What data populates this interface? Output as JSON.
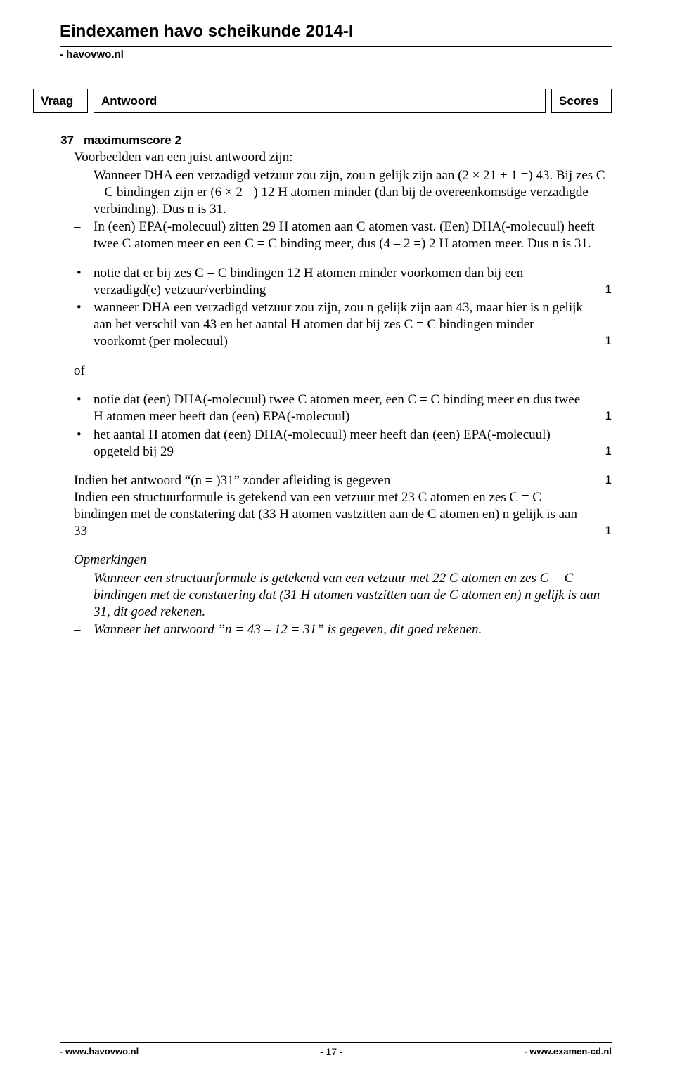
{
  "header": {
    "title": "Eindexamen havo scheikunde  2014-I",
    "subtitle": "- havovwo.nl",
    "col_vraag": "Vraag",
    "col_antwoord": "Antwoord",
    "col_scores": "Scores"
  },
  "question": {
    "number": "37",
    "title": "maximumscore 2",
    "intro": "Voorbeelden van een juist antwoord zijn:",
    "dash_items": [
      "Wanneer DHA een verzadigd vetzuur zou zijn, zou n gelijk zijn aan (2 × 21 + 1 =) 43. Bij zes C = C bindingen zijn er (6 × 2 =) 12 H atomen minder (dan bij de overeenkomstige verzadigde verbinding). Dus n is 31.",
      "In (een) EPA(-molecuul) zitten 29 H atomen aan C atomen vast. (Een) DHA(-molecuul) heeft twee C atomen meer en een C = C binding meer, dus (4 – 2 =) 2 H atomen meer. Dus n is 31."
    ],
    "bullets1": [
      {
        "text": "notie dat er bij zes C = C bindingen 12 H atomen minder voorkomen dan bij een verzadigd(e) vetzuur/verbinding",
        "score": "1"
      },
      {
        "text": "wanneer DHA een verzadigd vetzuur zou zijn, zou n gelijk zijn aan 43, maar hier is n gelijk aan het verschil van 43 en het aantal H atomen dat bij zes C = C bindingen minder voorkomt (per molecuul)",
        "score": "1"
      }
    ],
    "of_label": "of",
    "bullets2": [
      {
        "text": "notie dat (een) DHA(-molecuul) twee C atomen meer, een C = C binding meer en dus twee H atomen meer heeft dan (een) EPA(-molecuul)",
        "score": "1"
      },
      {
        "text": "het aantal H atomen dat (een) DHA(-molecuul) meer heeft dan (een) EPA(-molecuul) opgeteld bij 29",
        "score": "1"
      }
    ],
    "indien": [
      {
        "text": "Indien het antwoord “(n = )31” zonder afleiding is gegeven",
        "score": "1"
      },
      {
        "text": "Indien een structuurformule is getekend van een vetzuur met 23 C atomen en zes C = C bindingen met de constatering dat (33 H atomen vastzitten aan de C atomen en) n gelijk is aan 33",
        "score": "1"
      }
    ],
    "remarks_title": "Opmerkingen",
    "remarks": [
      "Wanneer een structuurformule is getekend van een vetzuur met 22 C atomen en zes C = C bindingen met de constatering dat (31 H atomen vastzitten aan de C atomen en) n gelijk is aan 31, dit goed rekenen.",
      "Wanneer het antwoord ”n = 43 – 12 = 31” is gegeven, dit goed rekenen."
    ]
  },
  "footer": {
    "left": "- www.havovwo.nl",
    "center": "- 17 -",
    "right": "- www.examen-cd.nl"
  }
}
